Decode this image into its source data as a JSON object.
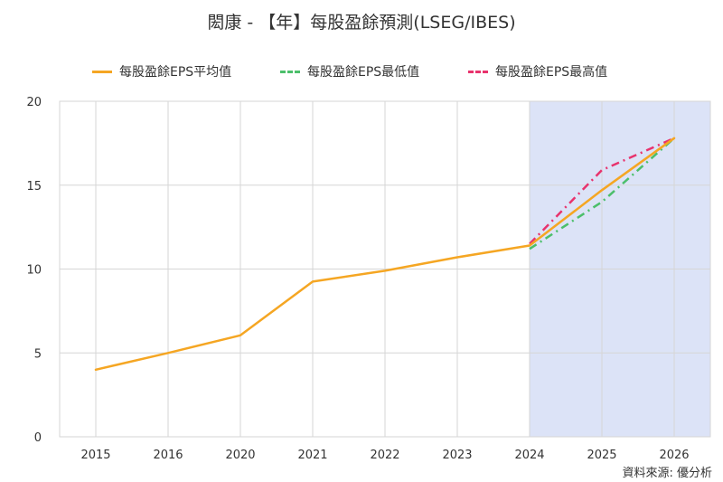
{
  "chart_data": {
    "type": "line",
    "title": "閎康 - 【年】每股盈餘預測(LSEG/IBES)",
    "categories": [
      "2015",
      "2016",
      "2020",
      "2021",
      "2022",
      "2023",
      "2024",
      "2025",
      "2026"
    ],
    "series": [
      {
        "name": "每股盈餘EPS平均值",
        "color": "#F5A623",
        "style": "solid",
        "values": [
          4.0,
          5.0,
          6.05,
          9.25,
          9.9,
          10.7,
          11.4,
          14.7,
          17.8
        ]
      },
      {
        "name": "每股盈餘EPS最低值",
        "color": "#4CBF6B",
        "style": "dashdot",
        "values": [
          null,
          null,
          null,
          null,
          null,
          null,
          11.2,
          14.0,
          17.8
        ]
      },
      {
        "name": "每股盈餘EPS最高值",
        "color": "#E8336D",
        "style": "dashdot",
        "values": [
          null,
          null,
          null,
          null,
          null,
          null,
          11.5,
          15.9,
          17.8
        ]
      }
    ],
    "ylim": [
      0,
      20
    ],
    "yticks": [
      0,
      5,
      10,
      15,
      20
    ],
    "grid": true,
    "legend_position": "top",
    "forecast_region": {
      "from": "2024",
      "to": "2026",
      "color": "#DCE3F7"
    }
  },
  "source_note": "資料來源: 優分析"
}
